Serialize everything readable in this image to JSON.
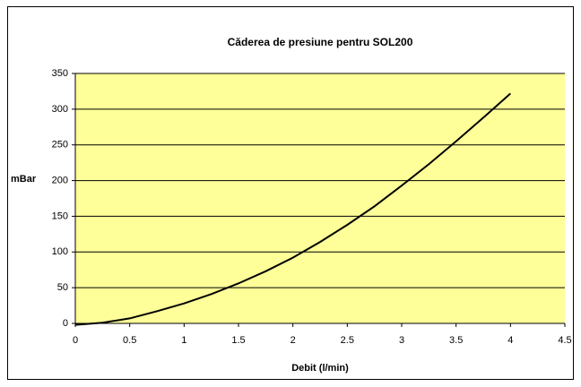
{
  "chart_data": {
    "type": "line",
    "title": "Căderea de presiune pentru SOL200",
    "x_label": "Debit (l/min)",
    "y_label": "mBar",
    "x": [
      0,
      0.25,
      0.5,
      0.75,
      1,
      1.25,
      1.5,
      1.75,
      2,
      2.25,
      2.5,
      2.75,
      3,
      3.25,
      3.5,
      3.75,
      4
    ],
    "series": [
      {
        "name": "SOL200",
        "color": "#000000",
        "values": [
          -2,
          1,
          7,
          17,
          28,
          41,
          56,
          73,
          92,
          114,
          138,
          164,
          193,
          223,
          255,
          288,
          322
        ]
      }
    ],
    "xlim": [
      0,
      4.5
    ],
    "xticks": [
      0,
      0.5,
      1,
      1.5,
      2,
      2.5,
      3,
      3.5,
      4,
      4.5
    ],
    "ylim": [
      0,
      350
    ],
    "yticks": [
      0,
      50,
      100,
      150,
      200,
      250,
      300,
      350
    ],
    "grid": true,
    "plot_background": "#FFFF99"
  }
}
